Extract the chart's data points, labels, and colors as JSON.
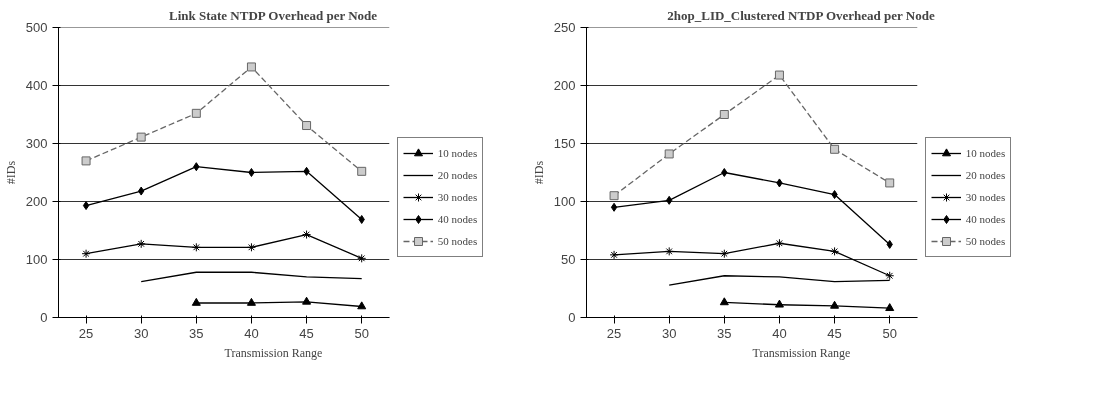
{
  "chart_data": [
    {
      "type": "line",
      "title": "Link State NTDP Overhead per Node",
      "xlabel": "Transmission Range",
      "ylabel": "#IDs",
      "categories": [
        "25",
        "30",
        "35",
        "40",
        "45",
        "50"
      ],
      "ylim": [
        0,
        500
      ],
      "yticks": [
        0,
        100,
        200,
        300,
        400,
        500
      ],
      "grid": "y",
      "legend": "right",
      "series": [
        {
          "name": "10 nodes",
          "color": "#000000",
          "marker": "triangle",
          "line_style": "solid",
          "values": [
            null,
            null,
            25,
            25,
            27,
            19
          ]
        },
        {
          "name": "20 nodes",
          "color": "#000000",
          "marker": "none",
          "line_style": "solid",
          "values": [
            null,
            62,
            78,
            78,
            70,
            67
          ]
        },
        {
          "name": "30 nodes",
          "color": "#000000",
          "marker": "cross",
          "line_style": "solid",
          "values": [
            110,
            127,
            121,
            121,
            143,
            102
          ]
        },
        {
          "name": "40 nodes",
          "color": "#000000",
          "marker": "diamond",
          "line_style": "solid",
          "values": [
            193,
            218,
            260,
            250,
            252,
            169
          ]
        },
        {
          "name": "50 nodes",
          "color": "#666666",
          "marker": "square",
          "line_style": "dashed",
          "values": [
            270,
            311,
            352,
            432,
            331,
            252
          ]
        }
      ]
    },
    {
      "type": "line",
      "title": "2hop_LID_Clustered NTDP Overhead per Node",
      "xlabel": "Transmission Range",
      "ylabel": "#IDs",
      "categories": [
        "25",
        "30",
        "35",
        "40",
        "45",
        "50"
      ],
      "ylim": [
        0,
        250
      ],
      "yticks": [
        0,
        50,
        100,
        150,
        200,
        250
      ],
      "grid": "y",
      "legend": "right",
      "series": [
        {
          "name": "10 nodes",
          "color": "#000000",
          "marker": "triangle",
          "line_style": "solid",
          "values": [
            null,
            null,
            13,
            11,
            10,
            8
          ]
        },
        {
          "name": "20 nodes",
          "color": "#000000",
          "marker": "none",
          "line_style": "solid",
          "values": [
            null,
            28,
            36,
            35,
            31,
            32
          ]
        },
        {
          "name": "30 nodes",
          "color": "#000000",
          "marker": "cross",
          "line_style": "solid",
          "values": [
            54,
            57,
            55,
            64,
            57,
            36
          ]
        },
        {
          "name": "40 nodes",
          "color": "#000000",
          "marker": "diamond",
          "line_style": "solid",
          "values": [
            95,
            101,
            125,
            116,
            106,
            63
          ]
        },
        {
          "name": "50 nodes",
          "color": "#666666",
          "marker": "square",
          "line_style": "dashed",
          "values": [
            105,
            141,
            175,
            209,
            145,
            116
          ]
        }
      ]
    }
  ]
}
